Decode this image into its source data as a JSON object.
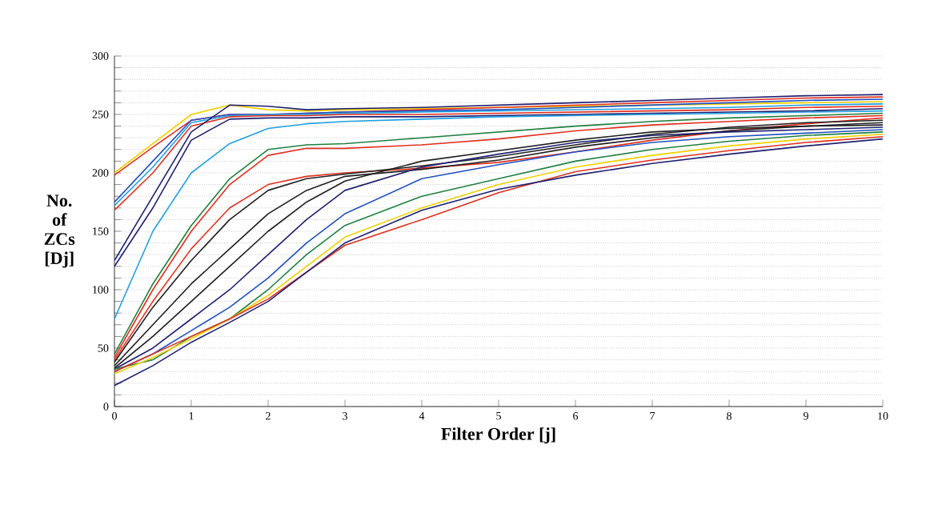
{
  "chart_data": {
    "type": "line",
    "xlabel": "Filter Order [j]",
    "ylabel": "No. of ZCs [Dj]",
    "x": [
      0,
      0.5,
      1,
      1.5,
      2,
      2.5,
      3,
      4,
      5,
      6,
      7,
      8,
      9,
      10
    ],
    "xlim": [
      0,
      10
    ],
    "xticks": [
      0,
      1,
      2,
      3,
      4,
      5,
      6,
      7,
      8,
      9,
      10
    ],
    "ylim": [
      0,
      300
    ],
    "yticks": [
      0,
      {
        "value": 10,
        "label": null
      },
      {
        "value": 20,
        "label": null
      },
      {
        "value": 30,
        "label": null
      },
      {
        "value": 40,
        "label": null
      },
      50,
      {
        "value": 60,
        "label": null
      },
      {
        "value": 70,
        "label": null
      },
      {
        "value": 80,
        "label": null
      },
      {
        "value": 90,
        "label": null
      },
      100,
      {
        "value": 110,
        "label": null
      },
      {
        "value": 120,
        "label": null
      },
      {
        "value": 130,
        "label": null
      },
      {
        "value": 140,
        "label": null
      },
      150,
      {
        "value": 160,
        "label": null
      },
      {
        "value": 170,
        "label": null
      },
      {
        "value": 180,
        "label": null
      },
      {
        "value": 190,
        "label": null
      },
      200,
      {
        "value": 210,
        "label": null
      },
      {
        "value": 220,
        "label": null
      },
      {
        "value": 230,
        "label": null
      },
      {
        "value": 240,
        "label": null
      },
      250,
      {
        "value": 260,
        "label": null
      },
      {
        "value": 270,
        "label": null
      },
      {
        "value": 280,
        "label": null
      },
      {
        "value": 290,
        "label": null
      },
      300
    ],
    "grid": "y",
    "marker": "none",
    "line_style": "solid",
    "series": [
      {
        "color": "#f0d000",
        "values": [
          200,
          225,
          250,
          258,
          254,
          253,
          254,
          255,
          256,
          257,
          258,
          259,
          260,
          261
        ]
      },
      {
        "color": "#e03020",
        "values": [
          198,
          222,
          245,
          250,
          250,
          251,
          252,
          254,
          256,
          258,
          260,
          262,
          264,
          265
        ]
      },
      {
        "color": "#2050c0",
        "values": [
          175,
          210,
          245,
          250,
          250,
          251,
          252,
          253,
          254,
          256,
          258,
          260,
          262,
          263
        ]
      },
      {
        "color": "#20a0e0",
        "values": [
          172,
          205,
          243,
          249,
          250,
          250,
          251,
          252,
          253,
          254,
          255,
          256,
          258,
          259
        ]
      },
      {
        "color": "#e03020",
        "values": [
          168,
          200,
          240,
          248,
          249,
          249,
          250,
          250,
          251,
          252,
          253,
          254,
          256,
          257
        ]
      },
      {
        "color": "#202070",
        "values": [
          125,
          180,
          235,
          258,
          257,
          254,
          255,
          256,
          258,
          260,
          262,
          264,
          266,
          267
        ]
      },
      {
        "color": "#202070",
        "values": [
          120,
          170,
          228,
          246,
          247,
          247,
          248,
          248,
          249,
          250,
          251,
          252,
          253,
          255
        ]
      },
      {
        "color": "#20a0e0",
        "values": [
          75,
          150,
          200,
          225,
          238,
          242,
          244,
          246,
          248,
          249,
          250,
          251,
          252,
          253
        ]
      },
      {
        "color": "#208040",
        "values": [
          45,
          105,
          155,
          195,
          220,
          224,
          225,
          230,
          235,
          240,
          244,
          247,
          249,
          251
        ]
      },
      {
        "color": "#e03020",
        "values": [
          42,
          100,
          150,
          190,
          215,
          221,
          221,
          224,
          229,
          236,
          241,
          244,
          247,
          249
        ]
      },
      {
        "color": "#e03020",
        "values": [
          40,
          90,
          135,
          170,
          190,
          197,
          200,
          204,
          209,
          218,
          228,
          236,
          242,
          247
        ]
      },
      {
        "color": "#202020",
        "values": [
          38,
          85,
          125,
          160,
          185,
          195,
          199,
          206,
          214,
          224,
          233,
          239,
          243,
          245
        ]
      },
      {
        "color": "#202020",
        "values": [
          35,
          70,
          105,
          135,
          165,
          185,
          197,
          203,
          211,
          222,
          230,
          236,
          240,
          243
        ]
      },
      {
        "color": "#202020",
        "values": [
          33,
          60,
          90,
          120,
          150,
          175,
          193,
          210,
          219,
          228,
          235,
          238,
          240,
          241
        ]
      },
      {
        "color": "#202070",
        "values": [
          32,
          50,
          75,
          100,
          130,
          160,
          185,
          205,
          216,
          226,
          232,
          235,
          237,
          239
        ]
      },
      {
        "color": "#2050c0",
        "values": [
          30,
          45,
          65,
          85,
          110,
          140,
          165,
          195,
          207,
          218,
          226,
          231,
          234,
          237
        ]
      },
      {
        "color": "#208040",
        "values": [
          32,
          40,
          60,
          75,
          100,
          130,
          155,
          180,
          195,
          210,
          220,
          227,
          232,
          235
        ]
      },
      {
        "color": "#f0d000",
        "values": [
          28,
          42,
          58,
          75,
          95,
          120,
          145,
          170,
          190,
          205,
          215,
          223,
          229,
          233
        ]
      },
      {
        "color": "#e03020",
        "values": [
          30,
          45,
          60,
          75,
          92,
          115,
          138,
          160,
          183,
          201,
          211,
          219,
          226,
          231
        ]
      },
      {
        "color": "#202070",
        "values": [
          18,
          35,
          55,
          72,
          90,
          115,
          140,
          168,
          186,
          198,
          208,
          216,
          223,
          229
        ]
      }
    ]
  }
}
